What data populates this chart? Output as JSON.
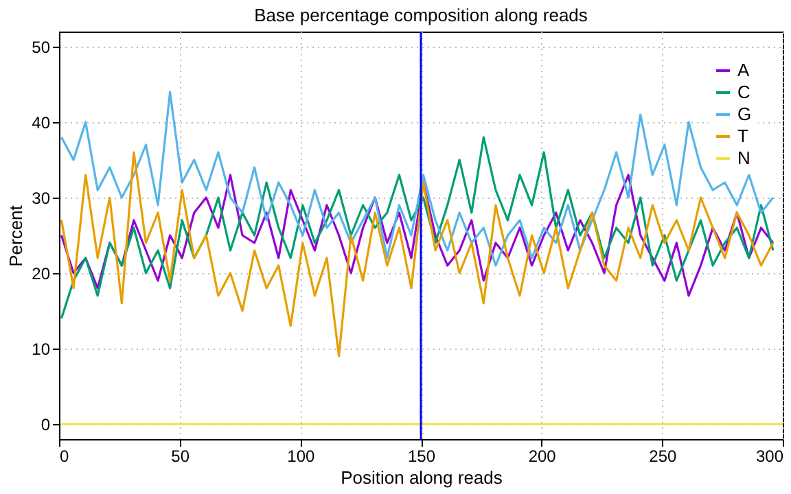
{
  "chart_data": {
    "type": "line",
    "title": "Base percentage composition along reads",
    "xlabel": "Position along reads",
    "ylabel": "Percent",
    "x": [
      1,
      6,
      11,
      16,
      21,
      26,
      31,
      36,
      41,
      46,
      51,
      56,
      61,
      66,
      71,
      76,
      81,
      86,
      91,
      96,
      101,
      106,
      111,
      116,
      121,
      126,
      131,
      136,
      141,
      146,
      151,
      156,
      161,
      166,
      171,
      176,
      181,
      186,
      191,
      196,
      201,
      206,
      211,
      216,
      221,
      226,
      231,
      236,
      241,
      246,
      251,
      256,
      261,
      266,
      271,
      276,
      281,
      286,
      291,
      296
    ],
    "series": [
      {
        "name": "A",
        "color": "#9400d3",
        "values": [
          25,
          20,
          22,
          18,
          24,
          21,
          27,
          23,
          19,
          25,
          22,
          28,
          30,
          26,
          33,
          25,
          24,
          28,
          22,
          31,
          27,
          23,
          29,
          25,
          20,
          26,
          30,
          24,
          28,
          22,
          32,
          25,
          21,
          23,
          27,
          19,
          24,
          22,
          26,
          21,
          25,
          28,
          23,
          27,
          24,
          20,
          29,
          33,
          25,
          22,
          19,
          24,
          17,
          21,
          26,
          23,
          28,
          22,
          26,
          24
        ]
      },
      {
        "name": "C",
        "color": "#009e73",
        "values": [
          14,
          19,
          22,
          17,
          24,
          21,
          26,
          20,
          23,
          18,
          27,
          22,
          25,
          30,
          23,
          28,
          25,
          32,
          26,
          22,
          29,
          24,
          27,
          31,
          25,
          29,
          26,
          28,
          33,
          27,
          30,
          24,
          29,
          35,
          28,
          38,
          31,
          27,
          33,
          29,
          36,
          26,
          31,
          25,
          28,
          22,
          26,
          24,
          30,
          21,
          25,
          19,
          23,
          27,
          21,
          24,
          26,
          22,
          29,
          23
        ]
      },
      {
        "name": "G",
        "color": "#56b4e9",
        "values": [
          38,
          35,
          40,
          31,
          34,
          30,
          33,
          37,
          29,
          44,
          32,
          35,
          31,
          36,
          30,
          28,
          34,
          27,
          32,
          29,
          25,
          31,
          26,
          28,
          24,
          27,
          30,
          22,
          29,
          25,
          33,
          27,
          23,
          28,
          24,
          26,
          21,
          25,
          27,
          22,
          26,
          24,
          29,
          23,
          27,
          31,
          36,
          30,
          41,
          33,
          37,
          29,
          40,
          34,
          31,
          32,
          29,
          33,
          28,
          30
        ]
      },
      {
        "name": "T",
        "color": "#e69f00",
        "values": [
          27,
          18,
          33,
          22,
          30,
          16,
          36,
          24,
          28,
          19,
          31,
          22,
          25,
          17,
          20,
          15,
          23,
          18,
          21,
          13,
          24,
          17,
          22,
          9,
          25,
          19,
          28,
          21,
          26,
          18,
          32,
          23,
          27,
          20,
          24,
          16,
          29,
          22,
          17,
          25,
          20,
          26,
          18,
          23,
          28,
          21,
          19,
          26,
          22,
          29,
          24,
          27,
          23,
          30,
          26,
          22,
          28,
          25,
          21,
          24
        ]
      },
      {
        "name": "N",
        "color": "#f0e442",
        "x": [
          1,
          300
        ],
        "values": [
          0,
          0
        ]
      }
    ],
    "xlim": [
      0,
      300
    ],
    "xticks": [
      0,
      50,
      100,
      150,
      200,
      250,
      300
    ],
    "ylim": [
      -2,
      52
    ],
    "yticks": [
      0,
      10,
      20,
      30,
      40,
      50
    ],
    "ref_lines": [
      {
        "axis": "x",
        "value": 150,
        "color": "#0000ff"
      }
    ],
    "grid": true,
    "legend": "top right",
    "line_style": "solid",
    "marker": "none"
  }
}
